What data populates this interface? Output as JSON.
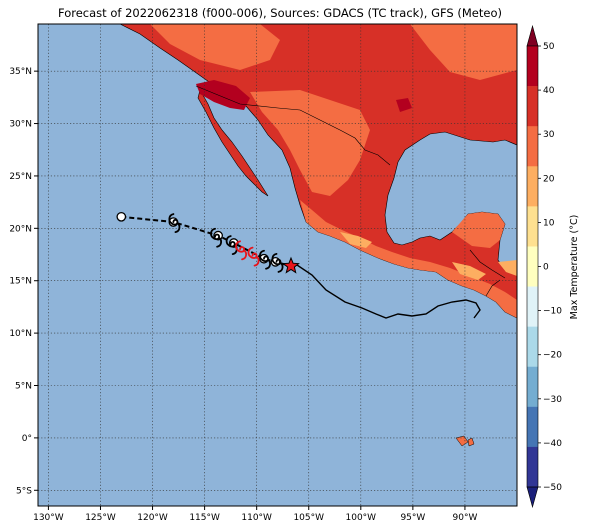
{
  "title": "Forecast of 2022062318 (f000-006), Sources: GDACS (TC track), GFS (Meteo)",
  "map": {
    "lon_range": [
      -131,
      -85
    ],
    "lat_range": [
      -6.5,
      39.5
    ],
    "lon_ticks": [
      "130°W",
      "125°W",
      "120°W",
      "115°W",
      "110°W",
      "105°W",
      "100°W",
      "95°W",
      "90°W"
    ],
    "lat_ticks": [
      "5°S",
      "0°",
      "5°N",
      "10°N",
      "15°N",
      "20°N",
      "25°N",
      "30°N",
      "35°N"
    ],
    "ocean_color": "#8fb4d9",
    "grid": "dotted"
  },
  "track": {
    "past_points": [
      {
        "lon": -123.0,
        "lat": 21.1,
        "marker": "open-circle"
      },
      {
        "lon": -118.0,
        "lat": 20.6,
        "marker": "open-circle"
      },
      {
        "lon": -113.7,
        "lat": 19.3,
        "marker": "open-circle"
      },
      {
        "lon": -112.2,
        "lat": 18.6,
        "marker": "open-circle"
      },
      {
        "lon": -109.3,
        "lat": 17.1,
        "marker": "open-circle"
      },
      {
        "lon": -108.2,
        "lat": 16.8,
        "marker": "open-circle"
      }
    ],
    "storm_symbols": [
      {
        "lon": -117.9,
        "lat": 20.5,
        "color": "black"
      },
      {
        "lon": -113.9,
        "lat": 19.1,
        "color": "black"
      },
      {
        "lon": -112.4,
        "lat": 18.4,
        "color": "black"
      },
      {
        "lon": -111.5,
        "lat": 17.9,
        "color": "red"
      },
      {
        "lon": -110.3,
        "lat": 17.3,
        "color": "red"
      },
      {
        "lon": -109.2,
        "lat": 17.0,
        "color": "black"
      },
      {
        "lon": -108.0,
        "lat": 16.7,
        "color": "black"
      }
    ],
    "current_position": {
      "lon": -106.7,
      "lat": 16.4,
      "marker": "red-star"
    },
    "forecast_swath_line": "black"
  },
  "colorbar": {
    "label": "Max Temperature (°C)",
    "ticks": [
      "50",
      "40",
      "30",
      "20",
      "10",
      "0",
      "−10",
      "−20",
      "−30",
      "−40",
      "−50"
    ],
    "colors_top_to_bottom": [
      "#7f0022",
      "#b3001f",
      "#d73027",
      "#f46d43",
      "#fdae61",
      "#fee090",
      "#ffffbf",
      "#e0f3f8",
      "#abd9e9",
      "#74add1",
      "#4575b4",
      "#313695",
      "#1a1f7a"
    ]
  },
  "land_colors": {
    "hot_40_50": "#b3001f",
    "hot_30_40": "#d73027",
    "warm_20_30": "#f46d43",
    "mild_10_20": "#fdae61"
  }
}
